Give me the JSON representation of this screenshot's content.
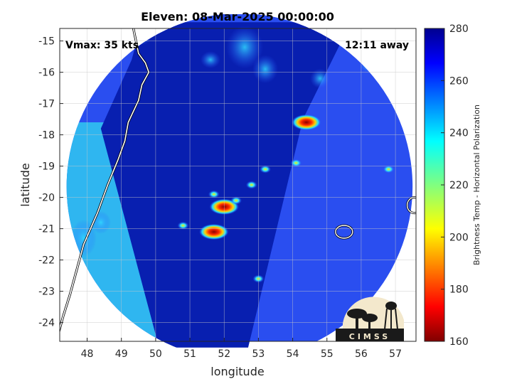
{
  "chart_data": {
    "type": "heatmap",
    "title": "Eleven: 08-Mar-2025 00:00:00",
    "xlabel": "longitude",
    "ylabel": "latitude",
    "xlim": [
      47.2,
      57.6
    ],
    "ylim": [
      -24.6,
      -14.6
    ],
    "x_ticks": [
      48,
      49,
      50,
      51,
      52,
      53,
      54,
      55,
      56,
      57
    ],
    "y_ticks": [
      -15,
      -16,
      -17,
      -18,
      -19,
      -20,
      -21,
      -22,
      -23,
      -24
    ],
    "grid": true,
    "annotations": {
      "left": "Vmax: 35 kts",
      "right": "12:11 away"
    },
    "colorbar": {
      "label": "Brightness Temp - Horizontal Polarization",
      "range": [
        160,
        280
      ],
      "ticks": [
        280,
        260,
        240,
        220,
        200,
        180,
        160
      ],
      "colormap": "jet"
    },
    "swath_center": [
      52.45,
      -19.65
    ],
    "swath_radius_deg": 5.05,
    "cold_cores": [
      {
        "lon": 52.0,
        "lat": -20.3,
        "tb": 190
      },
      {
        "lon": 51.7,
        "lat": -21.1,
        "tb": 185
      },
      {
        "lon": 54.4,
        "lat": -17.6,
        "tb": 185
      },
      {
        "lon": 50.8,
        "lat": -20.9,
        "tb": 225
      },
      {
        "lon": 51.7,
        "lat": -19.9,
        "tb": 215
      },
      {
        "lon": 52.35,
        "lat": -20.1,
        "tb": 230
      },
      {
        "lon": 54.1,
        "lat": -18.9,
        "tb": 235
      },
      {
        "lon": 52.8,
        "lat": -19.6,
        "tb": 245
      },
      {
        "lon": 53.2,
        "lat": -19.1,
        "tb": 248
      },
      {
        "lon": 53.0,
        "lat": -22.6,
        "tb": 245
      },
      {
        "lon": 56.8,
        "lat": -19.1,
        "tb": 245
      }
    ],
    "logo_text": "CIMSS"
  }
}
